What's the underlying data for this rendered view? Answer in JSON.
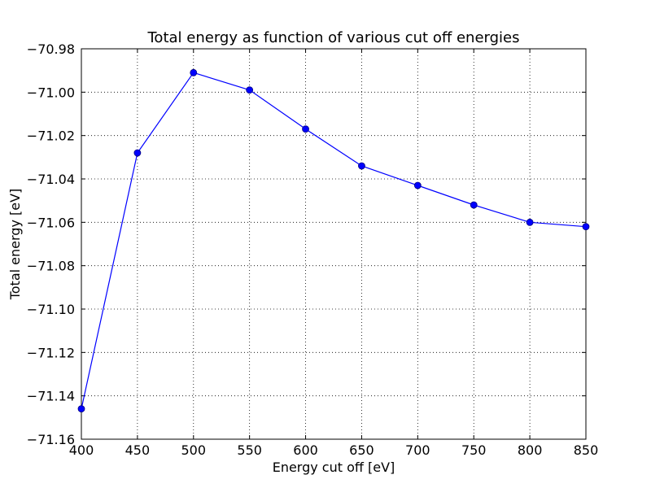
{
  "chart_data": {
    "type": "line",
    "title": "Total energy as function of various cut off energies",
    "xlabel": "Energy cut off [eV]",
    "ylabel": "Total energy [eV]",
    "xlim": [
      400,
      850
    ],
    "ylim": [
      -71.16,
      -70.98
    ],
    "x_ticks": [
      400,
      450,
      500,
      550,
      600,
      650,
      700,
      750,
      800,
      850
    ],
    "x_tick_labels": [
      "400",
      "450",
      "500",
      "550",
      "600",
      "650",
      "700",
      "750",
      "800",
      "850"
    ],
    "y_ticks": [
      -71.16,
      -71.14,
      -71.12,
      -71.1,
      -71.08,
      -71.06,
      -71.04,
      -71.02,
      -71.0,
      -70.98
    ],
    "y_tick_labels": [
      "−71.16",
      "−71.14",
      "−71.12",
      "−71.10",
      "−71.08",
      "−71.06",
      "−71.04",
      "−71.02",
      "−71.00",
      "−70.98"
    ],
    "grid": true,
    "series": [
      {
        "color": "#0000ff",
        "marker": "circle",
        "x": [
          400,
          450,
          500,
          550,
          600,
          650,
          700,
          750,
          800,
          850
        ],
        "y": [
          -71.146,
          -71.028,
          -70.991,
          -70.999,
          -71.017,
          -71.034,
          -71.043,
          -71.052,
          -71.06,
          -71.062
        ]
      }
    ]
  }
}
